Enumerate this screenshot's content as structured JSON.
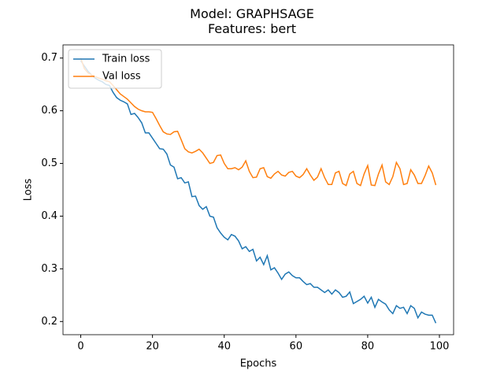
{
  "chart_data": {
    "type": "line",
    "title": "Model: GRAPHSAGE\nFeatures: bert",
    "x_label": "Epochs",
    "y_label": "Loss",
    "x": [
      0,
      1,
      2,
      3,
      4,
      5,
      6,
      7,
      8,
      9,
      10,
      11,
      12,
      13,
      14,
      15,
      16,
      17,
      18,
      19,
      20,
      21,
      22,
      23,
      24,
      25,
      26,
      27,
      28,
      29,
      30,
      31,
      32,
      33,
      34,
      35,
      36,
      37,
      38,
      39,
      40,
      41,
      42,
      43,
      44,
      45,
      46,
      47,
      48,
      49,
      50,
      51,
      52,
      53,
      54,
      55,
      56,
      57,
      58,
      59,
      60,
      61,
      62,
      63,
      64,
      65,
      66,
      67,
      68,
      69,
      70,
      71,
      72,
      73,
      74,
      75,
      76,
      77,
      78,
      79,
      80,
      81,
      82,
      83,
      84,
      85,
      86,
      87,
      88,
      89,
      90,
      91,
      92,
      93,
      94,
      95,
      96,
      97,
      98,
      99
    ],
    "series": [
      {
        "name": "Train loss",
        "color": "#1f77b4",
        "values": [
          0.695,
          0.685,
          0.675,
          0.668,
          0.662,
          0.658,
          0.655,
          0.65,
          0.648,
          0.635,
          0.625,
          0.62,
          0.617,
          0.613,
          0.593,
          0.595,
          0.587,
          0.577,
          0.558,
          0.558,
          0.548,
          0.538,
          0.528,
          0.527,
          0.518,
          0.497,
          0.493,
          0.471,
          0.473,
          0.463,
          0.465,
          0.437,
          0.438,
          0.42,
          0.413,
          0.418,
          0.4,
          0.398,
          0.378,
          0.368,
          0.36,
          0.355,
          0.365,
          0.362,
          0.353,
          0.338,
          0.342,
          0.333,
          0.337,
          0.315,
          0.322,
          0.308,
          0.325,
          0.298,
          0.302,
          0.292,
          0.28,
          0.29,
          0.294,
          0.287,
          0.283,
          0.283,
          0.276,
          0.27,
          0.272,
          0.265,
          0.265,
          0.26,
          0.255,
          0.26,
          0.252,
          0.26,
          0.255,
          0.246,
          0.248,
          0.256,
          0.234,
          0.238,
          0.242,
          0.248,
          0.235,
          0.246,
          0.227,
          0.242,
          0.237,
          0.233,
          0.222,
          0.215,
          0.23,
          0.225,
          0.227,
          0.215,
          0.23,
          0.225,
          0.207,
          0.218,
          0.214,
          0.212,
          0.212,
          0.197
        ]
      },
      {
        "name": "Val loss",
        "color": "#ff7f0e",
        "values": [
          0.7,
          0.68,
          0.672,
          0.668,
          0.665,
          0.662,
          0.66,
          0.657,
          0.655,
          0.648,
          0.64,
          0.632,
          0.627,
          0.622,
          0.615,
          0.608,
          0.603,
          0.6,
          0.598,
          0.598,
          0.597,
          0.585,
          0.572,
          0.56,
          0.556,
          0.555,
          0.56,
          0.561,
          0.545,
          0.528,
          0.522,
          0.52,
          0.523,
          0.527,
          0.52,
          0.51,
          0.5,
          0.502,
          0.515,
          0.516,
          0.5,
          0.49,
          0.49,
          0.492,
          0.488,
          0.493,
          0.505,
          0.485,
          0.473,
          0.474,
          0.49,
          0.492,
          0.475,
          0.472,
          0.48,
          0.485,
          0.478,
          0.476,
          0.483,
          0.485,
          0.476,
          0.473,
          0.479,
          0.49,
          0.478,
          0.468,
          0.474,
          0.49,
          0.473,
          0.46,
          0.46,
          0.482,
          0.485,
          0.462,
          0.458,
          0.48,
          0.485,
          0.462,
          0.458,
          0.48,
          0.496,
          0.459,
          0.458,
          0.48,
          0.497,
          0.465,
          0.46,
          0.475,
          0.502,
          0.49,
          0.46,
          0.462,
          0.488,
          0.478,
          0.462,
          0.462,
          0.477,
          0.495,
          0.482,
          0.459
        ]
      }
    ],
    "xlim": [
      -4.95,
      103.95
    ],
    "ylim": [
      0.175,
      0.725
    ],
    "xticks": [
      0,
      20,
      40,
      60,
      80,
      100
    ],
    "yticks": [
      0.2,
      0.3,
      0.4,
      0.5,
      0.6,
      0.7
    ],
    "grid": false,
    "legend": "upper-left"
  }
}
